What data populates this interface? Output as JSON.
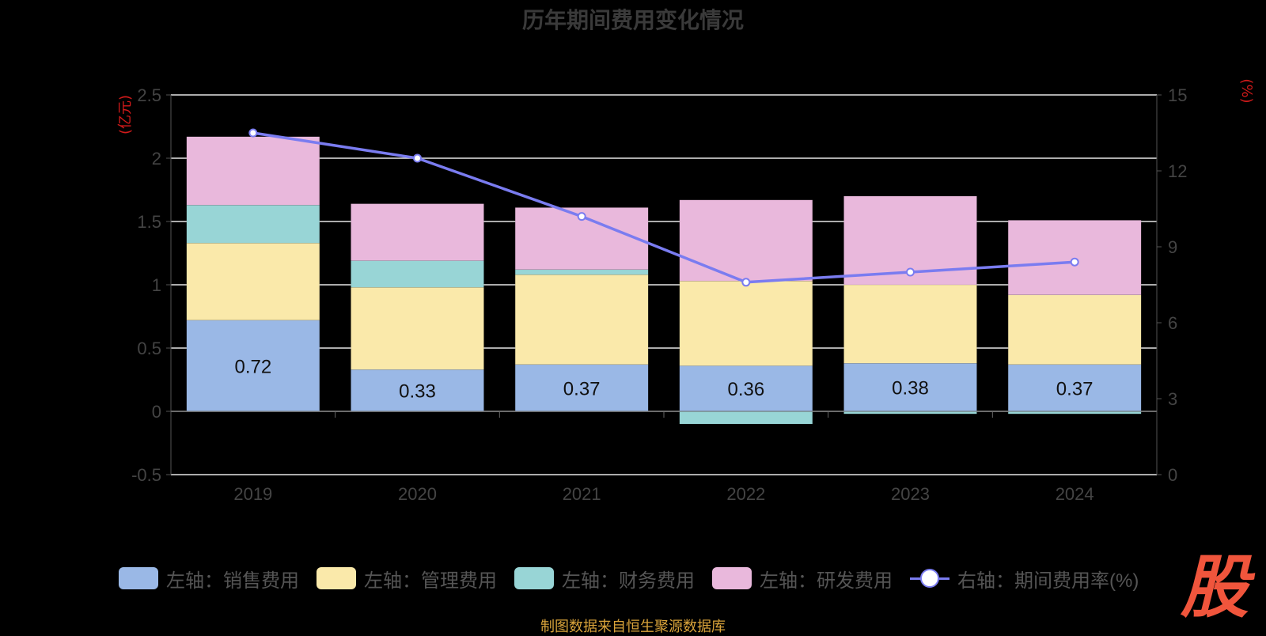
{
  "title": "历年期间费用变化情况",
  "source": "制图数据来自恒生聚源数据库",
  "watermark": "股",
  "chart_data": {
    "type": "bar",
    "stacked": true,
    "categories": [
      "2019",
      "2020",
      "2021",
      "2022",
      "2023",
      "2024"
    ],
    "left_axis": {
      "unit": "(亿元)",
      "ylim": [
        -0.5,
        2.5
      ],
      "ticks": [
        -0.5,
        0,
        0.5,
        1,
        1.5,
        2,
        2.5
      ]
    },
    "right_axis": {
      "unit": "(%)",
      "ylim": [
        0,
        15
      ],
      "ticks": [
        0,
        3,
        6,
        9,
        12,
        15
      ]
    },
    "series": [
      {
        "name": "左轴：销售费用",
        "axis": "left",
        "color": "#9ab8e6",
        "values": [
          0.72,
          0.33,
          0.37,
          0.36,
          0.38,
          0.37
        ],
        "show_labels": true
      },
      {
        "name": "左轴：管理费用",
        "axis": "left",
        "color": "#fae9aa",
        "values": [
          0.61,
          0.65,
          0.71,
          0.67,
          0.62,
          0.55
        ]
      },
      {
        "name": "左轴：财务费用",
        "axis": "left",
        "color": "#98d5d6",
        "values": [
          0.3,
          0.21,
          0.04,
          -0.1,
          -0.02,
          -0.02
        ]
      },
      {
        "name": "左轴：研发费用",
        "axis": "left",
        "color": "#e9b8dc",
        "values": [
          0.54,
          0.45,
          0.49,
          0.64,
          0.7,
          0.59
        ]
      },
      {
        "name": "右轴：期间费用率(%)",
        "axis": "right",
        "type": "line",
        "color": "#7a7cf0",
        "values": [
          13.5,
          12.5,
          10.2,
          7.6,
          8.0,
          8.4
        ]
      }
    ],
    "grid": true,
    "legend_position": "bottom"
  }
}
